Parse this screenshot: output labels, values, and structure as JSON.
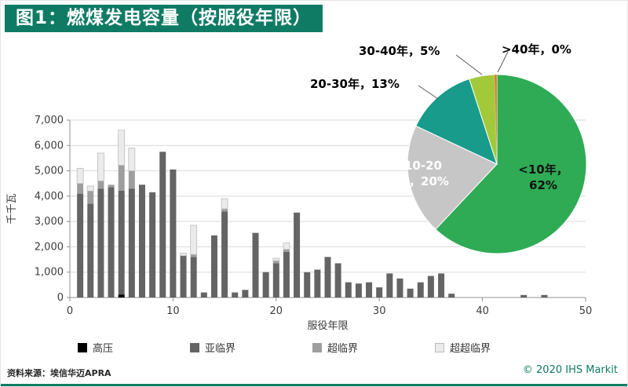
{
  "header": {
    "title": "图1：燃煤发电容量（按服役年限）"
  },
  "colors": {
    "accent": "#0f7b64"
  },
  "footer": {
    "source": "资料来源：埃信华迈APRA",
    "copyright": "© 2020 IHS Markit"
  },
  "chart_data": [
    {
      "type": "bar",
      "stacked": true,
      "title": "燃煤发电容量（按服役年限）",
      "xlabel": "服役年限",
      "ylabel": "千千瓦",
      "xlim": [
        0,
        50
      ],
      "ylim": [
        0,
        7000
      ],
      "ytick_step": 1000,
      "xticks": [
        0,
        10,
        20,
        30,
        40,
        50
      ],
      "x": [
        1,
        2,
        3,
        4,
        5,
        6,
        7,
        8,
        9,
        10,
        11,
        12,
        13,
        14,
        15,
        16,
        17,
        18,
        19,
        20,
        21,
        22,
        23,
        24,
        25,
        26,
        27,
        28,
        29,
        30,
        31,
        32,
        33,
        34,
        35,
        36,
        37,
        38,
        39,
        40,
        41,
        42,
        43,
        44,
        45,
        46
      ],
      "series": [
        {
          "name": "高压",
          "color": "#000000",
          "values": [
            0,
            0,
            0,
            0,
            120,
            0,
            0,
            0,
            0,
            0,
            0,
            0,
            0,
            0,
            0,
            0,
            0,
            0,
            0,
            0,
            0,
            0,
            0,
            0,
            0,
            0,
            0,
            0,
            0,
            0,
            0,
            0,
            0,
            0,
            0,
            0,
            0,
            0,
            0,
            0,
            0,
            0,
            0,
            0,
            0,
            0
          ]
        },
        {
          "name": "亚临界",
          "color": "#646464",
          "values": [
            4100,
            3700,
            4300,
            4350,
            4100,
            4300,
            4450,
            4150,
            5750,
            5050,
            1650,
            1600,
            200,
            2450,
            3400,
            200,
            300,
            2550,
            1000,
            1350,
            1800,
            3350,
            1000,
            1100,
            1600,
            1350,
            600,
            550,
            600,
            400,
            950,
            750,
            350,
            600,
            850,
            950,
            150,
            0,
            0,
            0,
            0,
            0,
            0,
            100,
            0,
            100
          ]
        },
        {
          "name": "超临界",
          "color": "#9e9e9e",
          "values": [
            400,
            500,
            300,
            100,
            1000,
            700,
            0,
            0,
            0,
            0,
            0,
            100,
            0,
            0,
            100,
            0,
            0,
            0,
            0,
            100,
            100,
            0,
            0,
            0,
            0,
            0,
            0,
            0,
            0,
            0,
            0,
            0,
            0,
            0,
            0,
            0,
            0,
            0,
            0,
            0,
            0,
            0,
            0,
            0,
            0,
            0
          ]
        },
        {
          "name": "超超临界",
          "color": "#ebebeb",
          "border": "#bdbdbd",
          "values": [
            600,
            200,
            1100,
            0,
            1380,
            900,
            0,
            0,
            0,
            0,
            100,
            1150,
            0,
            0,
            400,
            0,
            0,
            0,
            0,
            100,
            250,
            0,
            0,
            0,
            0,
            0,
            0,
            0,
            0,
            0,
            0,
            0,
            0,
            0,
            0,
            0,
            0,
            0,
            0,
            0,
            0,
            0,
            0,
            0,
            0,
            0
          ]
        }
      ]
    },
    {
      "type": "pie",
      "labels": [
        "<10年",
        "10-20年",
        "20-30年",
        "30-40年",
        ">40年"
      ],
      "values": [
        62,
        20,
        13,
        5,
        0
      ],
      "colors": [
        "#2eab54",
        "#c6c6c6",
        "#189b8a",
        "#a2c93a",
        "#e2751f"
      ],
      "start_angle_deg": -90,
      "direction": "clockwise",
      "labels_display": {
        "lt10": "<10年，62%",
        "b1020": "10-20年，20%",
        "b2030": "20-30年，13%",
        "b3040": "30-40年，5%",
        "gt40": ">40年，0%"
      }
    }
  ]
}
